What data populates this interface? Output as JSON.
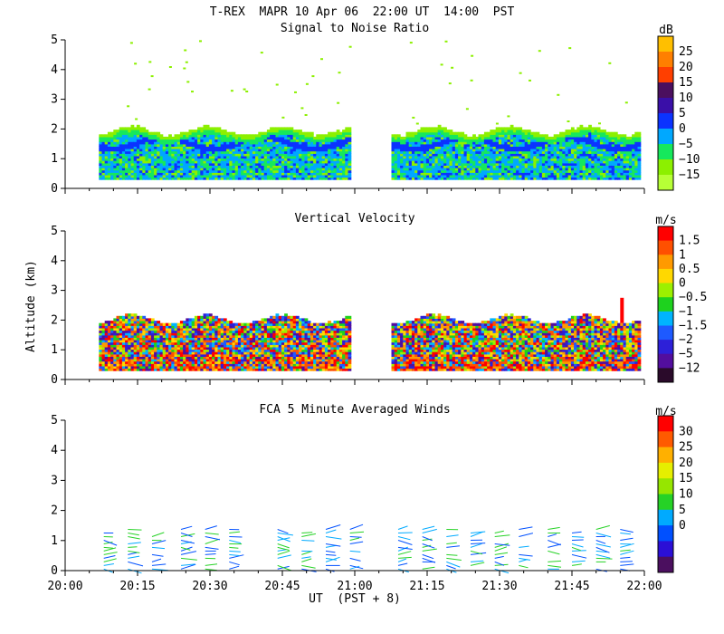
{
  "figure": {
    "title": "T-REX  MAPR 10 Apr 06  22:00 UT  14:00  PST",
    "ylabel": "Altitude (km)",
    "xlabel": "UT  (PST + 8)",
    "x_tick_labels": [
      "20:00",
      "20:15",
      "20:30",
      "20:45",
      "21:00",
      "21:15",
      "21:30",
      "21:45",
      "22:00"
    ],
    "y_tick_labels": [
      "0",
      "1",
      "2",
      "3",
      "4",
      "5"
    ]
  },
  "chart_data": [
    {
      "type": "heatmap",
      "title": "Signal to Noise Ratio",
      "unit": "dB",
      "xlabel": "UT  (PST + 8)",
      "ylabel": "Altitude (km)",
      "xlim": [
        "20:00",
        "22:00"
      ],
      "ylim": [
        0,
        5
      ],
      "gap": [
        "20:59",
        "21:07"
      ],
      "data_extent": {
        "x": [
          "20:07",
          "21:59"
        ],
        "y": [
          0.3,
          1.9
        ]
      },
      "colorbar": {
        "labels": [
          "25",
          "20",
          "15",
          "10",
          "5",
          "0",
          "−5",
          "−10",
          "−15"
        ],
        "colors": [
          "#ffbf00",
          "#ff7f00",
          "#ff3f00",
          "#4b0f5f",
          "#3a0fa8",
          "#0b33ff",
          "#00a8ff",
          "#16e85c",
          "#8cf000",
          "#b7ff36"
        ]
      }
    },
    {
      "type": "heatmap",
      "title": "Vertical Velocity",
      "unit": "m/s",
      "xlabel": "UT  (PST + 8)",
      "ylabel": "Altitude (km)",
      "xlim": [
        "20:00",
        "22:00"
      ],
      "ylim": [
        0,
        5
      ],
      "gap": [
        "20:59",
        "21:07"
      ],
      "data_extent": {
        "x": [
          "20:07",
          "21:59"
        ],
        "y": [
          0.3,
          2.0
        ]
      },
      "colorbar": {
        "labels": [
          "1.5",
          "1",
          "0.5",
          "0",
          "−0.5",
          "−1",
          "−1.5",
          "−2",
          "−5",
          "−12"
        ],
        "colors": [
          "#ff0000",
          "#ff5000",
          "#ff9a00",
          "#ffd800",
          "#9cf000",
          "#1ed21e",
          "#00b4ff",
          "#1e5aff",
          "#2d20d8",
          "#520e9e",
          "#2a0a2a"
        ]
      }
    },
    {
      "type": "scatter",
      "title": "FCA 5 Minute Averaged Winds",
      "unit": "m/s",
      "xlabel": "UT  (PST + 8)",
      "ylabel": "Altitude (km)",
      "xlim": [
        "20:00",
        "22:00"
      ],
      "ylim": [
        0,
        5
      ],
      "barb_times": [
        "20:08",
        "20:13",
        "20:18",
        "20:24",
        "20:29",
        "20:34",
        "20:44",
        "20:49",
        "20:54",
        "20:59",
        "21:09",
        "21:14",
        "21:19",
        "21:24",
        "21:29",
        "21:34",
        "21:40",
        "21:45",
        "21:50",
        "21:55"
      ],
      "colorbar": {
        "labels": [
          "30",
          "25",
          "20",
          "15",
          "10",
          "5",
          "0"
        ],
        "colors": [
          "#ff0000",
          "#ff5a00",
          "#ffb000",
          "#e6ef00",
          "#96e600",
          "#26d226",
          "#00aaff",
          "#0050ff",
          "#2b0fd6",
          "#4b0f5f"
        ]
      }
    }
  ]
}
